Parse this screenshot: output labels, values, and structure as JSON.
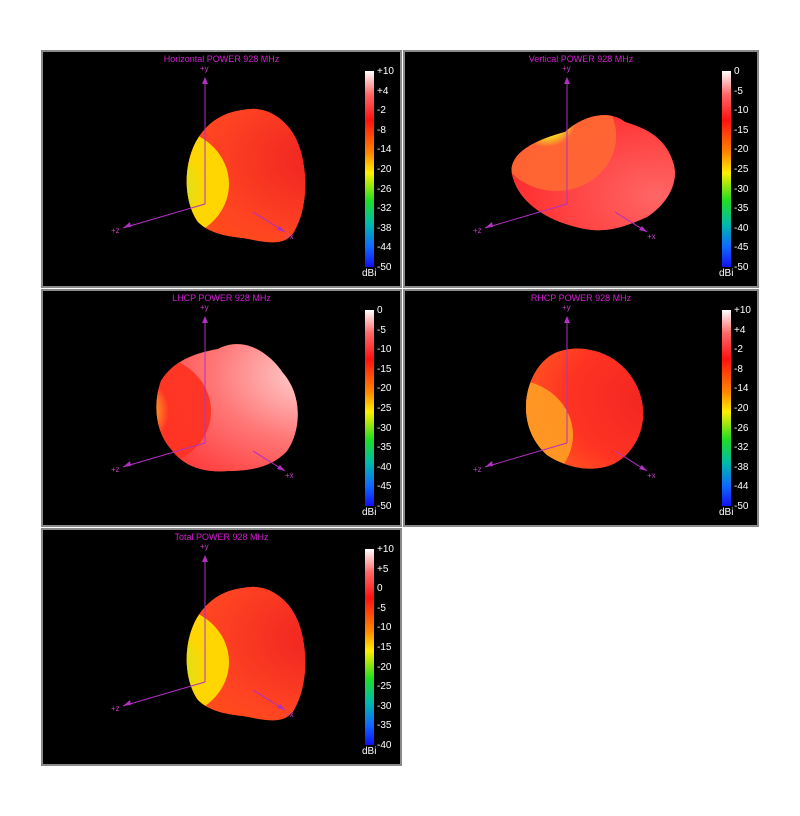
{
  "colors": {
    "axis": "#b030c0",
    "title": "#d020d0",
    "background": "#000000",
    "frame": "#8a8a8a"
  },
  "chart_data": [
    {
      "type": "heatmap",
      "title": "Horizontal POWER 928  MHz",
      "axes": {
        "y": "+y",
        "z": "+z",
        "x": "+x"
      },
      "colorbar": {
        "unit": "dBi",
        "ticks": [
          "+10",
          "+4",
          "-2",
          "-8",
          "-14",
          "-20",
          "-26",
          "-32",
          "-38",
          "-44",
          "-50"
        ],
        "range": [
          -50,
          10
        ]
      }
    },
    {
      "type": "heatmap",
      "title": "Vertical POWER 928  MHz",
      "axes": {
        "y": "+y",
        "z": "+z",
        "x": "+x"
      },
      "colorbar": {
        "unit": "dBi",
        "ticks": [
          "0",
          "-5",
          "-10",
          "-15",
          "-20",
          "-25",
          "-30",
          "-35",
          "-40",
          "-45",
          "-50"
        ],
        "range": [
          -50,
          0
        ]
      }
    },
    {
      "type": "heatmap",
      "title": "LHCP POWER 928  MHz",
      "axes": {
        "y": "+y",
        "z": "+z",
        "x": "+x"
      },
      "colorbar": {
        "unit": "dBi",
        "ticks": [
          "0",
          "-5",
          "-10",
          "-15",
          "-20",
          "-25",
          "-30",
          "-35",
          "-40",
          "-45",
          "-50"
        ],
        "range": [
          -50,
          0
        ]
      }
    },
    {
      "type": "heatmap",
      "title": "RHCP POWER 928  MHz",
      "axes": {
        "y": "+y",
        "z": "+z",
        "x": "+x"
      },
      "colorbar": {
        "unit": "dBi",
        "ticks": [
          "+10",
          "+4",
          "-2",
          "-8",
          "-14",
          "-20",
          "-26",
          "-32",
          "-38",
          "-44",
          "-50"
        ],
        "range": [
          -50,
          10
        ]
      }
    },
    {
      "type": "heatmap",
      "title": "Total POWER 928  MHz",
      "axes": {
        "y": "+y",
        "z": "+z",
        "x": "+x"
      },
      "colorbar": {
        "unit": "dBi",
        "ticks": [
          "+10",
          "+5",
          "0",
          "-5",
          "-10",
          "-15",
          "-20",
          "-25",
          "-30",
          "-35",
          "-40"
        ],
        "range": [
          -40,
          10
        ]
      }
    }
  ]
}
